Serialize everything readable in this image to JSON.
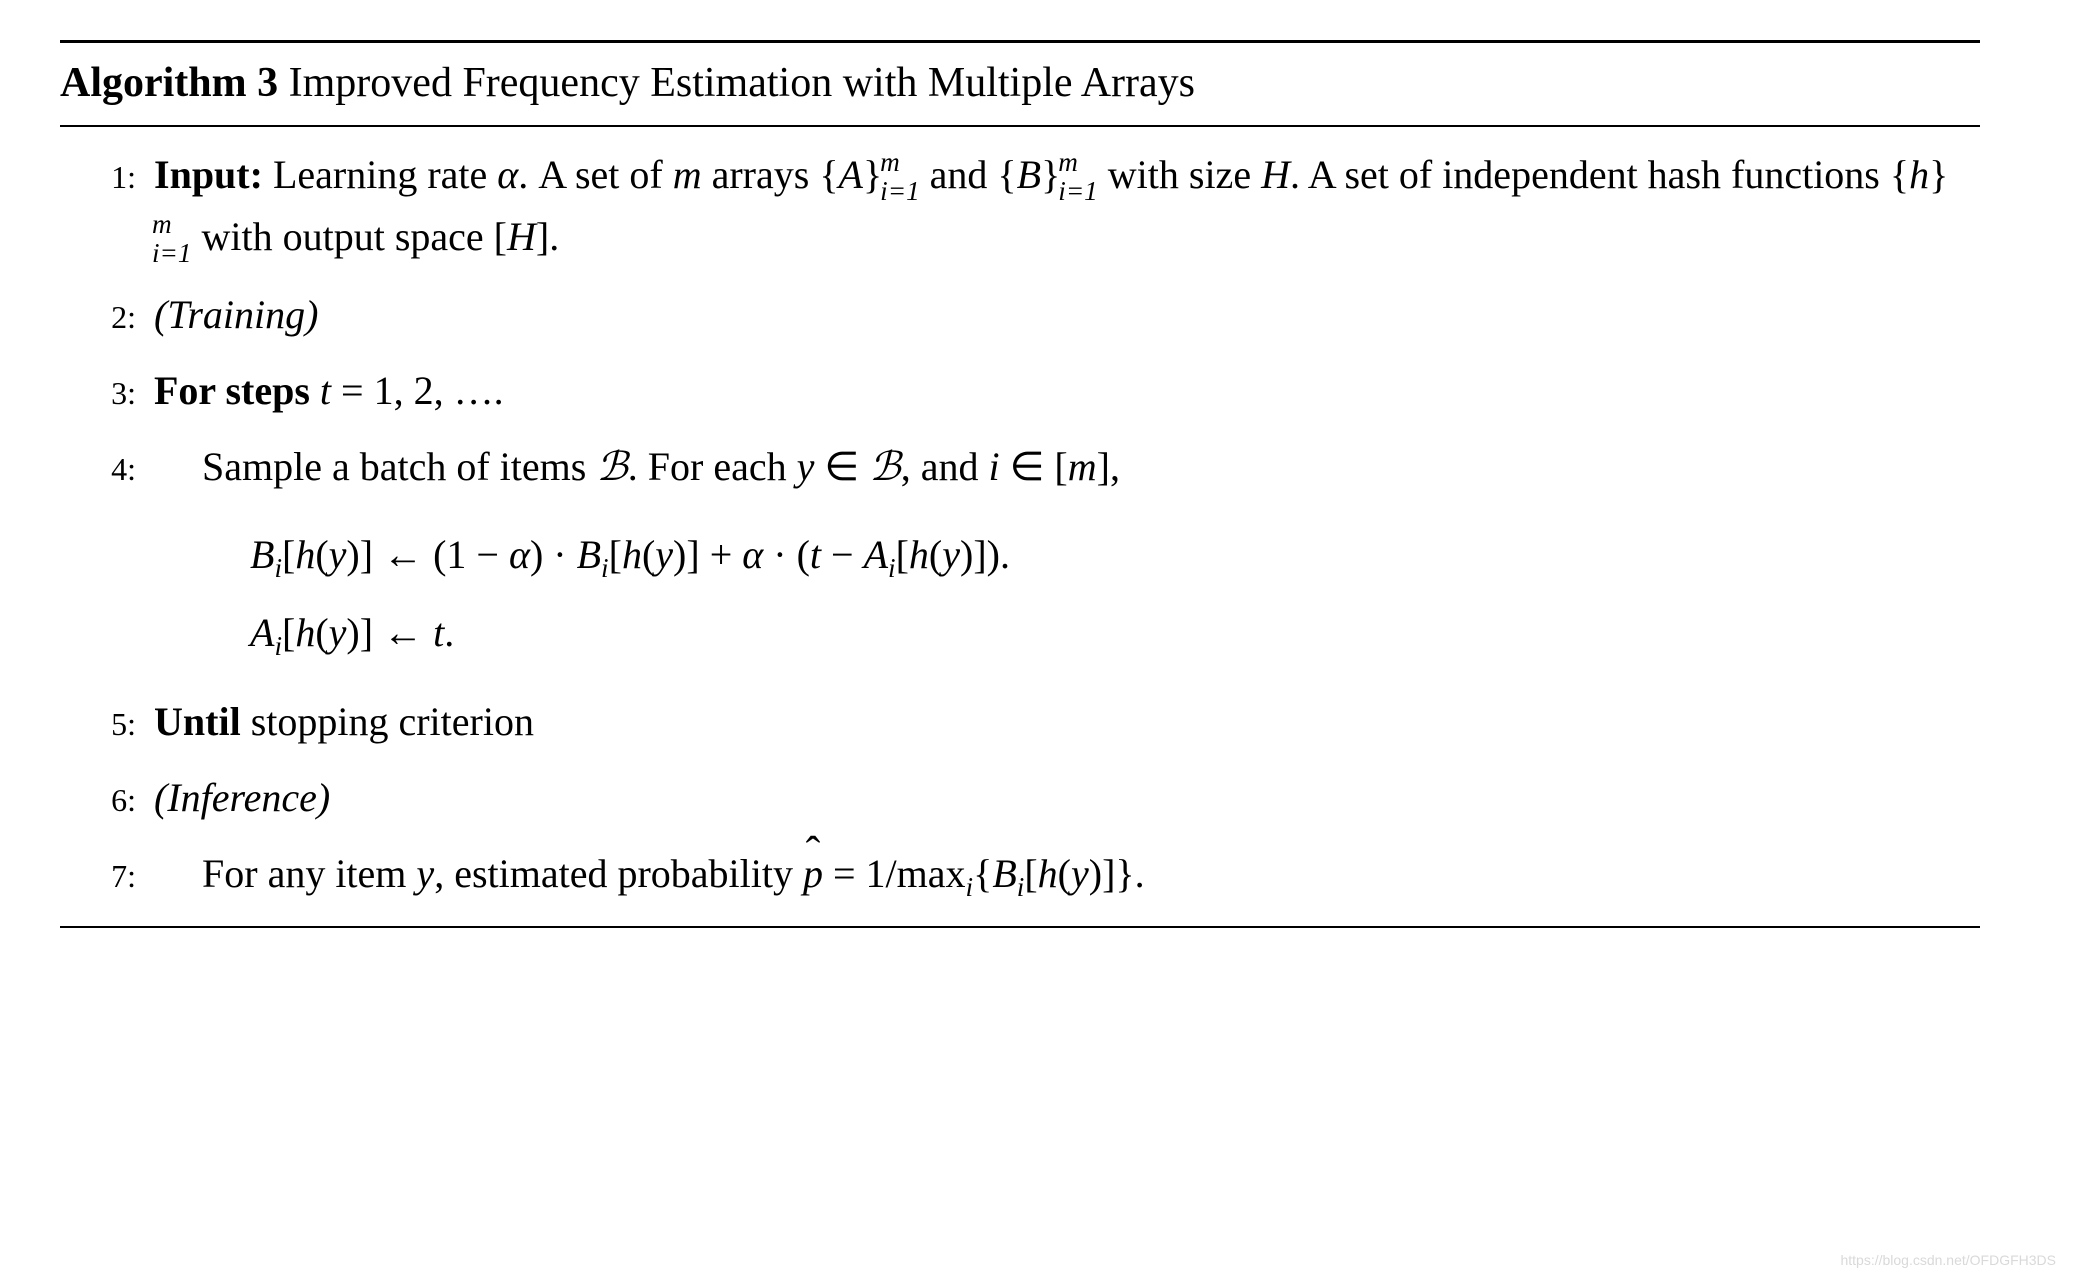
{
  "colors": {
    "background": "#ffffff",
    "text": "#000000",
    "rule": "#000000",
    "watermark": "#d9d9d9"
  },
  "typography": {
    "body_font": "Georgia / Times New Roman (serif)",
    "title_fontsize_pt": 42,
    "body_fontsize_pt": 40,
    "stepnum_fontsize_pt": 32,
    "title_bold_weight": 700
  },
  "algorithm": {
    "label_bold": "Algorithm 3",
    "label_rest": " Improved Frequency Estimation with Multiple Arrays",
    "steps": {
      "s1": {
        "num": "1:",
        "lead": "Input:",
        "text_a": " Learning rate ",
        "alpha": "α",
        "text_b": ". A set of ",
        "m": "m",
        "text_c": " arrays {",
        "A": "A",
        "brace_close": "}",
        "stack_top": "m",
        "stack_bot": "i=1",
        "text_and": " and {",
        "B": "B",
        "text_d": " with size ",
        "H": "H",
        "text_e": ". A set of independent hash functions {",
        "h": "h",
        "text_f": " with output space [",
        "text_g": "]."
      },
      "s2": {
        "num": "2:",
        "text": "(Training)"
      },
      "s3": {
        "num": "3:",
        "lead": "For steps ",
        "t": "t",
        "eq": " = 1, 2, …."
      },
      "s4": {
        "num": "4:",
        "text_a": "Sample a batch of items ",
        "Bscr": "ℬ",
        "text_b": ". For each ",
        "y": "y",
        "in": " ∈ ",
        "text_c": ", and ",
        "i": "i",
        "text_d": " ∈ [",
        "m": "m",
        "text_e": "],"
      },
      "eq": {
        "line1_lhs_B": "B",
        "line1_lhs_i": "i",
        "line1_lhs_open": "[",
        "line1_lhs_h": "h",
        "line1_lhs_paren_o": "(",
        "line1_lhs_y": "y",
        "line1_lhs_paren_c": ")",
        "line1_lhs_close": "]",
        "arrow": " ← ",
        "line1_r1": "(1 − ",
        "alpha": "α",
        "line1_r2": ") · ",
        "line1_r3": " + ",
        "line1_r4": " · (",
        "t": "t",
        "line1_r5": " − ",
        "A": "A",
        "line1_end": ").",
        "line2_end": "."
      },
      "s5": {
        "num": "5:",
        "lead": "Until",
        "text": " stopping criterion"
      },
      "s6": {
        "num": "6:",
        "text": "(Inference)"
      },
      "s7": {
        "num": "7:",
        "text_a": "For any item ",
        "y": "y",
        "text_b": ", estimated probability ",
        "phat": "p",
        "eq": " = 1/",
        "max": "max",
        "i": "i",
        "brace_o": "{",
        "B": "B",
        "text_c": "[",
        "h": "h",
        "paren_o": "(",
        "paren_c": ")",
        "text_d": "]",
        "brace_c": "}."
      }
    }
  },
  "watermark": "https://blog.csdn.net/OFDGFH3DS"
}
